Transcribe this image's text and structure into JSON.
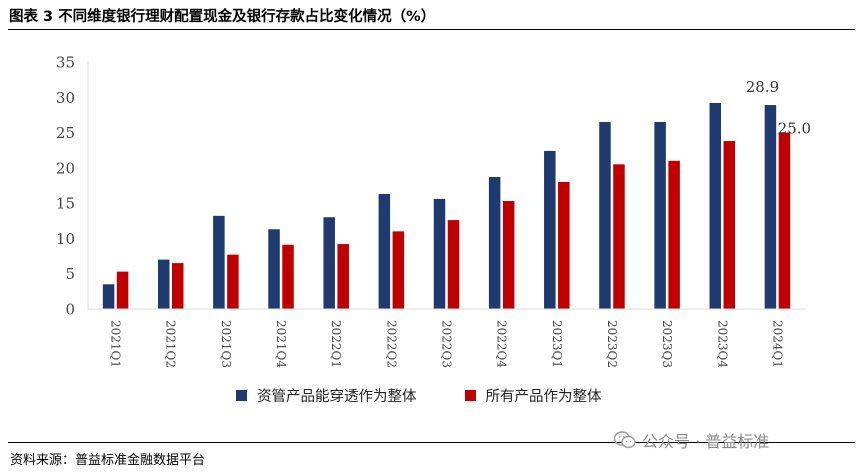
{
  "header": {
    "title": "图表 3 不同维度银行理财配置现金及银行存款占比变化情况（%）"
  },
  "footer": {
    "source": "资料来源：普益标准金融数据平台",
    "watermark": "公众号 · 普益标准"
  },
  "chart_data": {
    "type": "bar",
    "categories": [
      "2021Q1",
      "2021Q2",
      "2021Q3",
      "2021Q4",
      "2022Q1",
      "2022Q2",
      "2022Q3",
      "2022Q4",
      "2023Q1",
      "2023Q2",
      "2023Q3",
      "2023Q4",
      "2024Q1"
    ],
    "series": [
      {
        "name": "资管产品能穿透作为整体",
        "color": "#1f3a6e",
        "values": [
          3.5,
          7.0,
          13.2,
          11.3,
          13.0,
          16.3,
          15.6,
          18.7,
          22.4,
          26.5,
          26.5,
          29.2,
          28.9
        ]
      },
      {
        "name": "所有产品作为整体",
        "color": "#c00000",
        "values": [
          5.3,
          6.5,
          7.7,
          9.1,
          9.2,
          11.0,
          12.6,
          15.3,
          18.0,
          20.5,
          21.0,
          23.8,
          25.0
        ]
      }
    ],
    "data_labels": [
      {
        "series": 0,
        "index": 12,
        "text": "28.9"
      },
      {
        "series": 1,
        "index": 12,
        "text": "25.0"
      }
    ],
    "ylim": [
      0,
      35
    ],
    "yticks": [
      "0",
      "5",
      "10",
      "15",
      "20",
      "25",
      "30",
      "35"
    ],
    "xlabel": "",
    "ylabel": "",
    "legend_position": "bottom",
    "grid": false
  }
}
